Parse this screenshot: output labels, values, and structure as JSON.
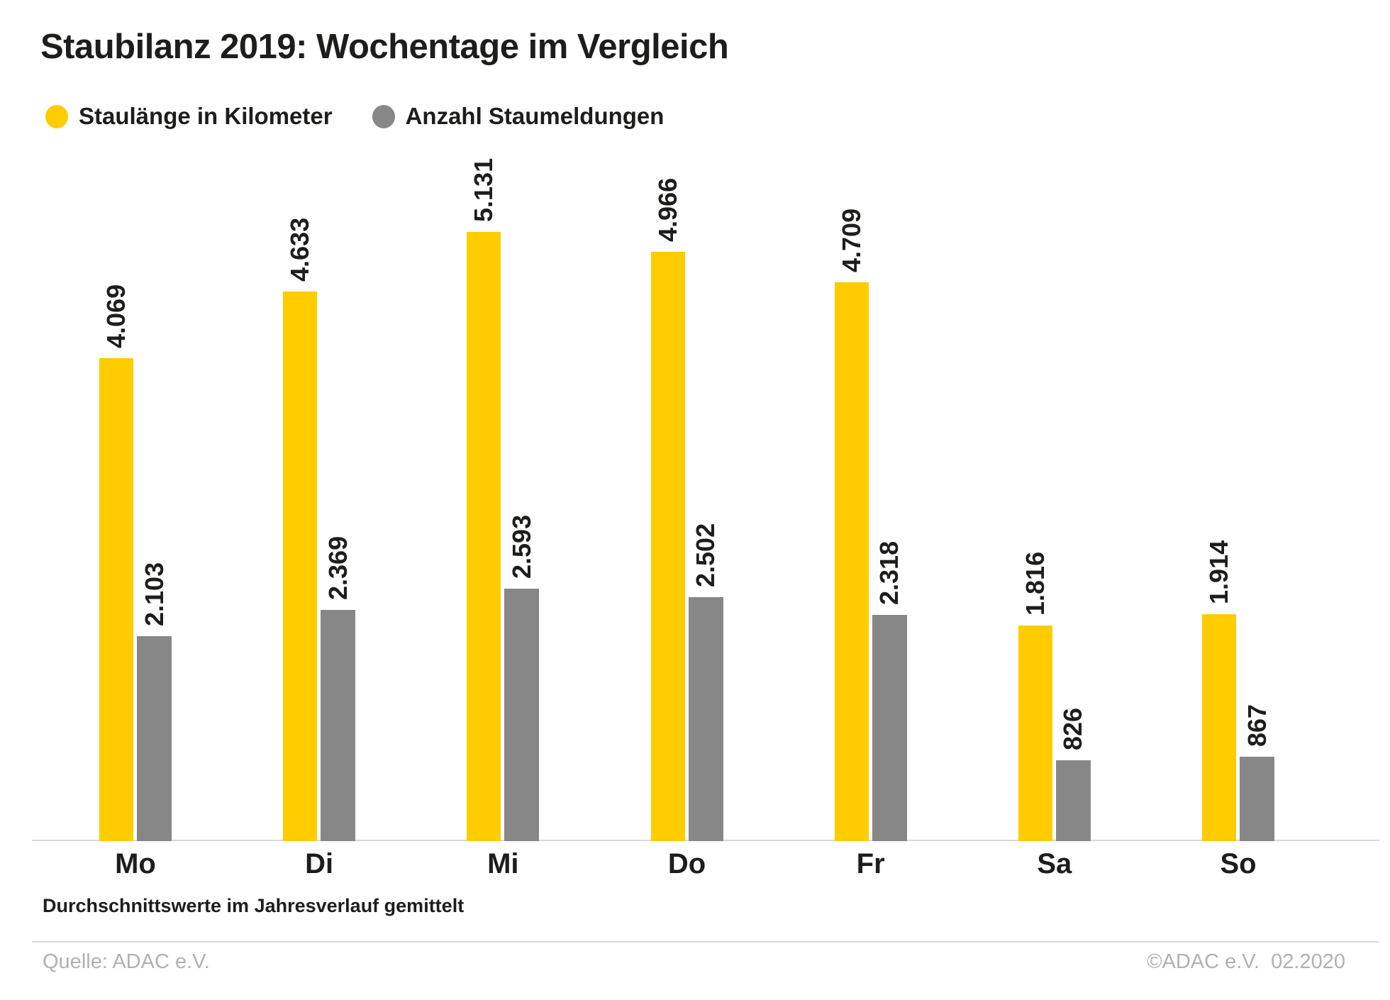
{
  "title": "Staubilanz 2019: Wochentage im Vergleich",
  "legend": [
    {
      "name": "yellow-series",
      "label": "Staulänge in Kilometer",
      "color": "#FFCC00"
    },
    {
      "name": "gray-series",
      "label": "Anzahl Staumeldungen",
      "color": "#878787"
    }
  ],
  "chart_data": {
    "type": "bar",
    "title": "Staubilanz 2019: Wochentage im Vergleich",
    "categories": [
      "Mo",
      "Di",
      "Mi",
      "Do",
      "Fr",
      "Sa",
      "So"
    ],
    "series": [
      {
        "name": "Staulänge in Kilometer",
        "color": "#FFCC00",
        "values": [
          4069,
          4633,
          5131,
          4966,
          4709,
          1816,
          1914
        ],
        "value_labels": [
          "4.069",
          "4.633",
          "5.131",
          "4.966",
          "4.709",
          "1.816",
          "1.914"
        ]
      },
      {
        "name": "Anzahl Staumeldungen",
        "color": "#878787",
        "values": [
          2103,
          2369,
          2593,
          2502,
          2318,
          826,
          867
        ],
        "value_labels": [
          "2.103",
          "2.369",
          "2.593",
          "2.502",
          "2.318",
          "826",
          "867"
        ]
      }
    ],
    "xlabel": "",
    "ylabel": "",
    "grid": false,
    "legend_position": "top-left",
    "value_label_style": "rotated-90-above-bars"
  },
  "footnote": "Durchschnittswerte im Jahresverlauf gemittelt",
  "footer": {
    "source": "Quelle: ADAC e.V.",
    "copyright": "©ADAC e.V.  02.2020"
  }
}
